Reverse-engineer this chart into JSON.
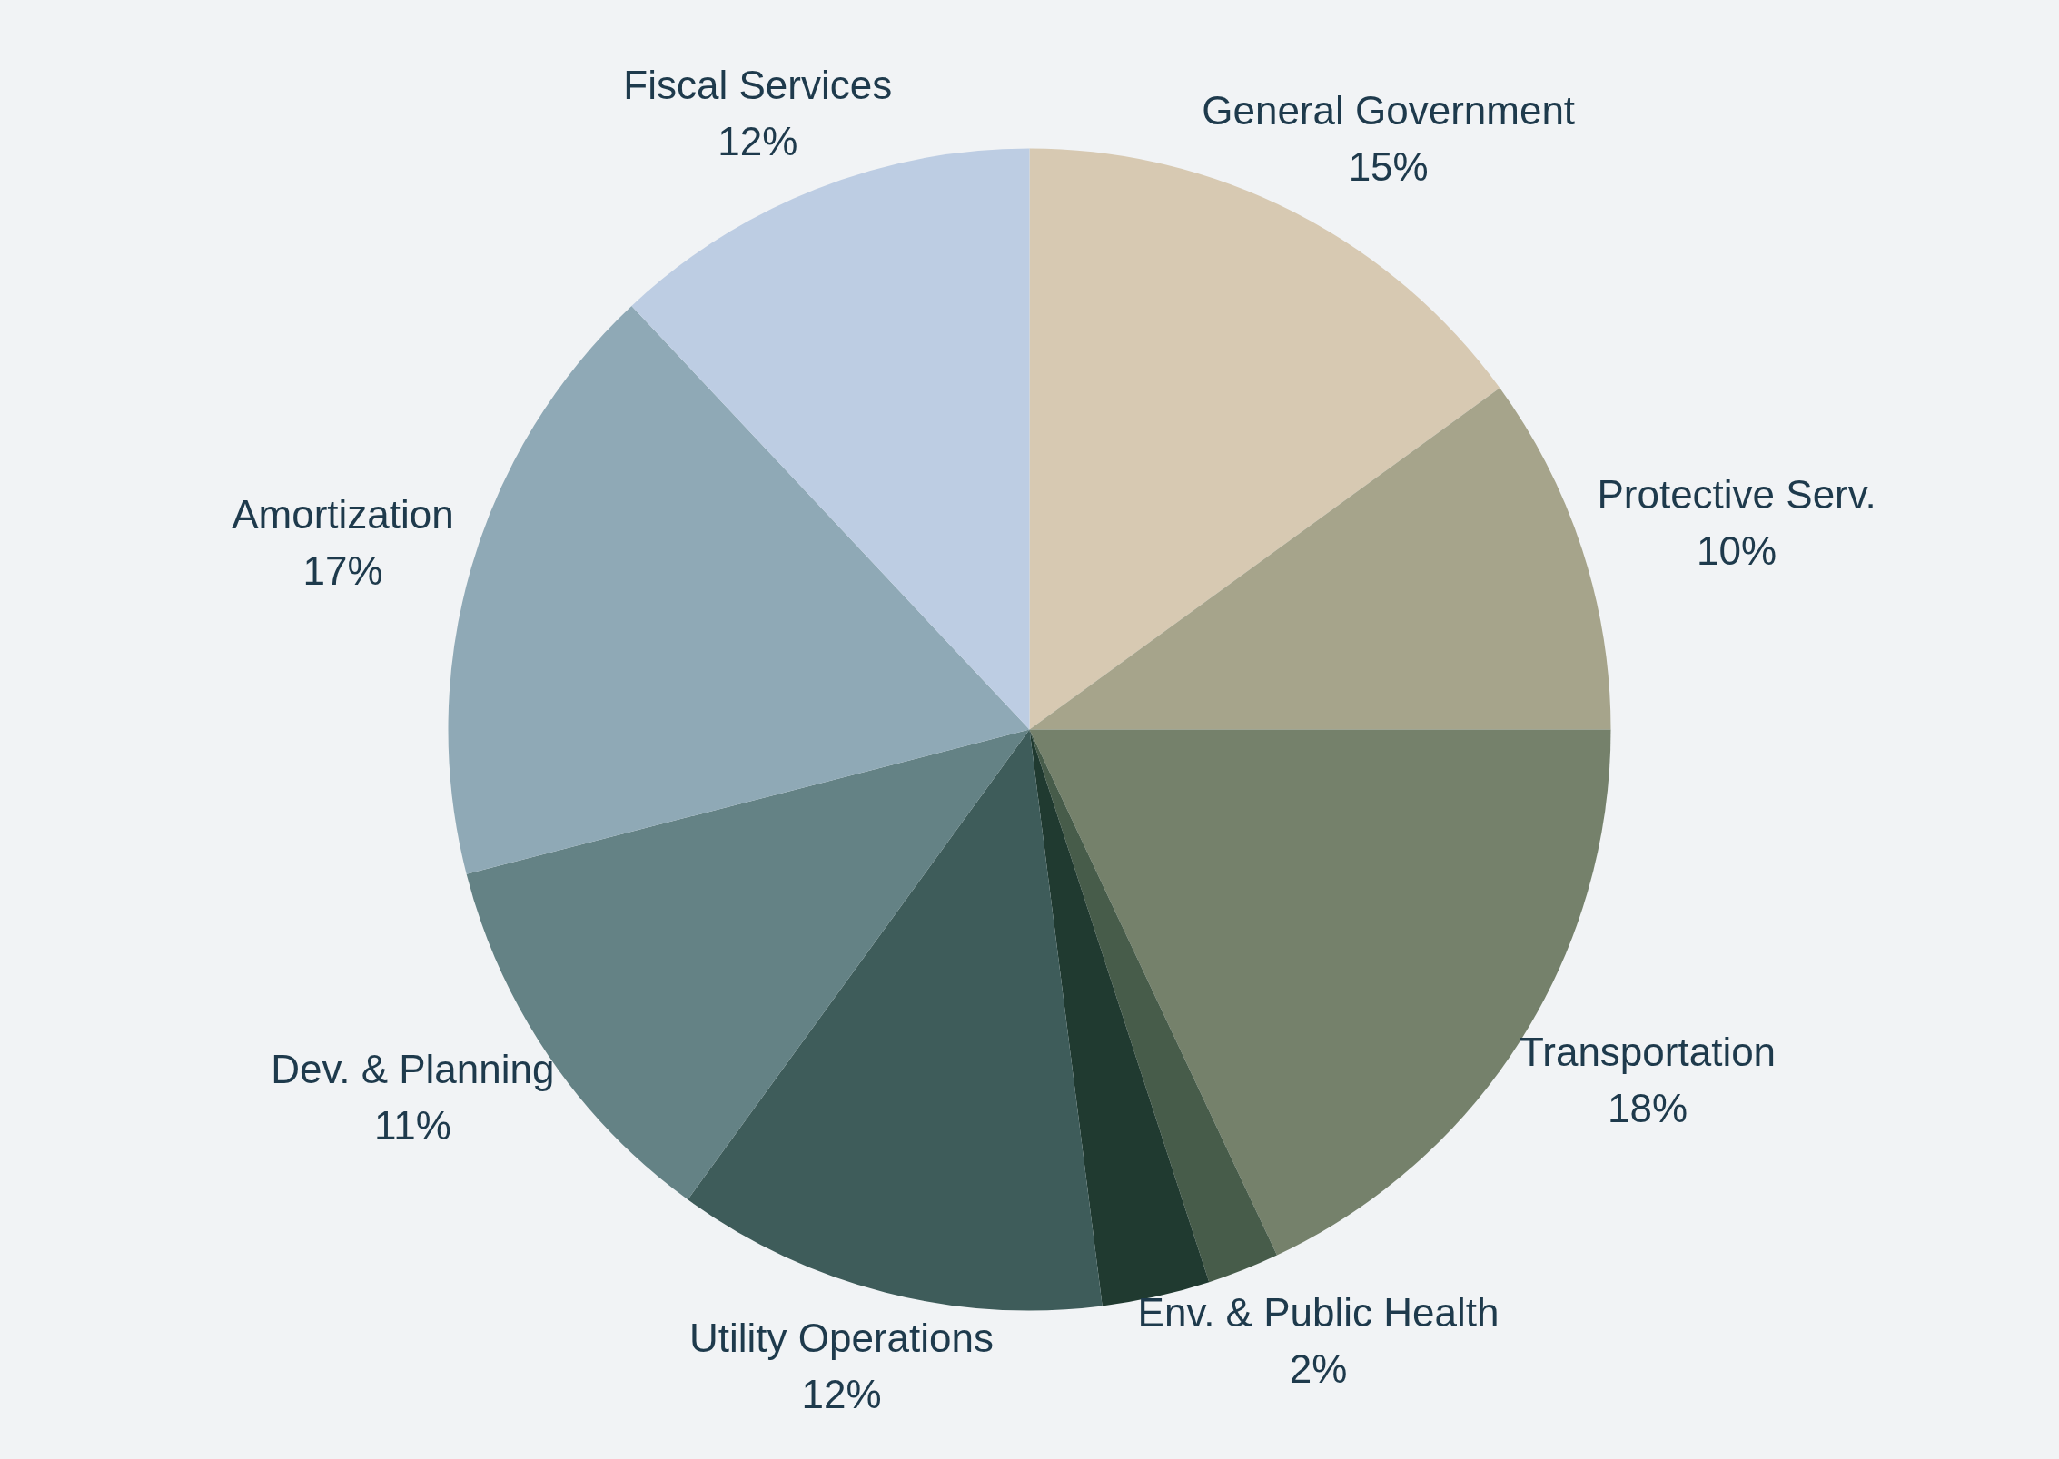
{
  "chart_data": {
    "type": "pie",
    "categories": [
      "General Government",
      "Protective Serv.",
      "Transportation",
      "Env. & Public Health",
      null,
      "Utility Operations",
      "Dev. & Planning",
      "Amortization",
      "Fiscal Services"
    ],
    "values": [
      15,
      10,
      18,
      2,
      3,
      12,
      11,
      17,
      12
    ],
    "value_labels": [
      "15%",
      "10%",
      "18%",
      "2%",
      null,
      "12%",
      "11%",
      "17%",
      "12%"
    ],
    "colors": [
      "#d7c9b2",
      "#a6a48b",
      "#75816b",
      "#475c4a",
      "#203a30",
      "#3e5c5a",
      "#648285",
      "#8fa9b6",
      "#bdcde3"
    ],
    "legend": false
  }
}
